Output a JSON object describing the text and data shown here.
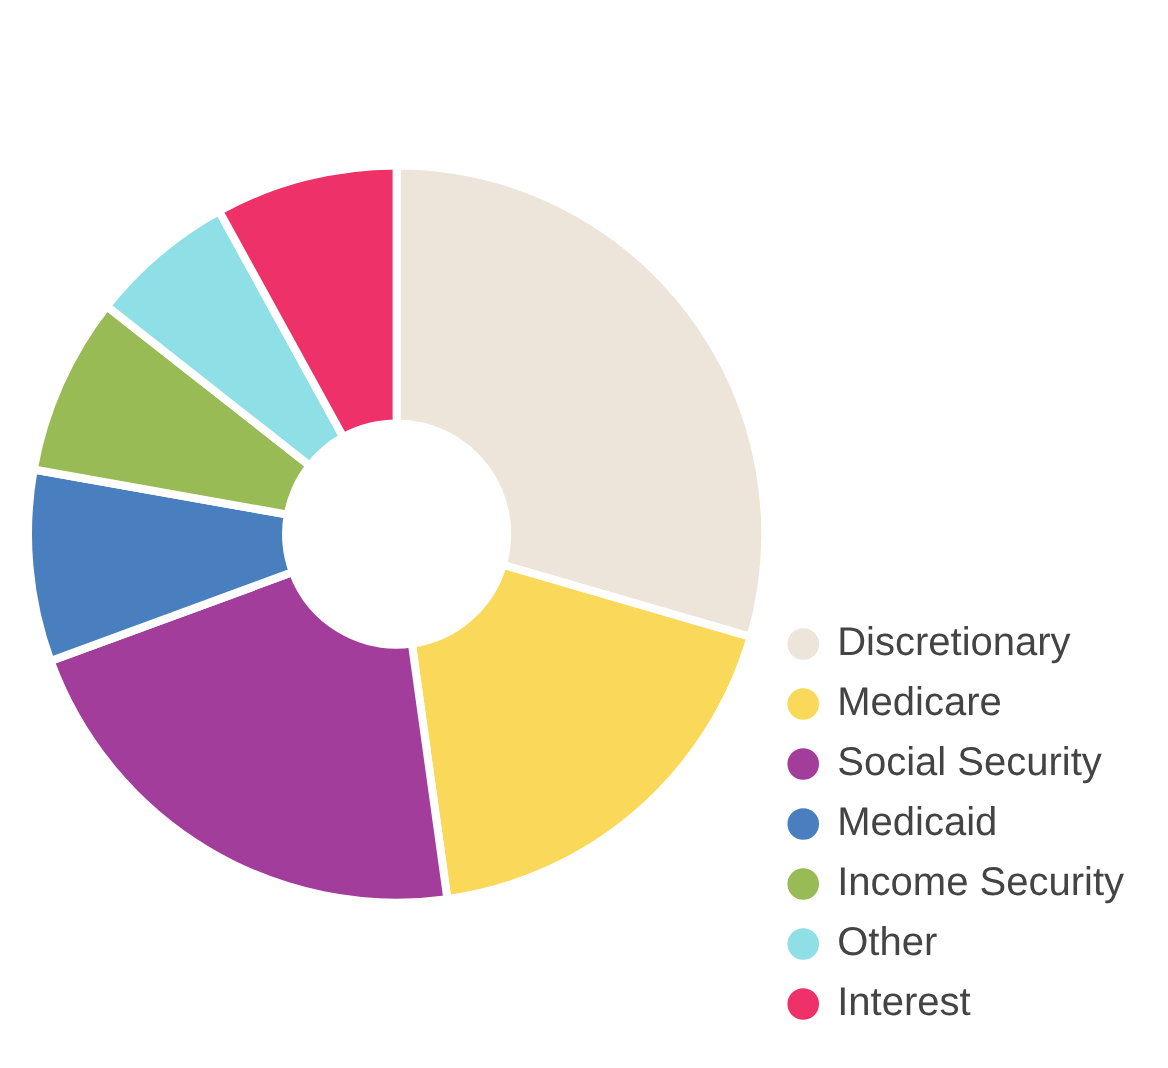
{
  "chart_data": {
    "type": "donut",
    "categories": [
      "Discretionary",
      "Medicare",
      "Social Security",
      "Medicaid",
      "Income Security",
      "Other",
      "Interest"
    ],
    "values": [
      29.5,
      18.3,
      21.6,
      8.4,
      7.8,
      6.4,
      8
    ],
    "colors": [
      "#ede5da",
      "#fad95a",
      "#a23d9c",
      "#4a7fbf",
      "#99bb55",
      "#8ee0e6",
      "#ee3169"
    ],
    "legend": "bottom right"
  }
}
